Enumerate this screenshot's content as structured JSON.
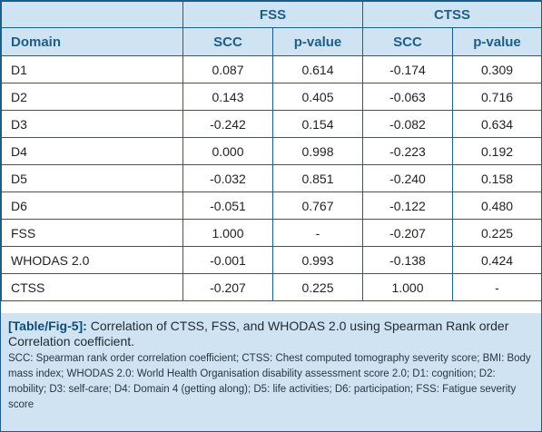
{
  "table": {
    "group_headers": [
      "FSS",
      "CTSS"
    ],
    "domain_header": "Domain",
    "sub_headers": [
      "SCC",
      "p-value",
      "SCC",
      "p-value"
    ],
    "rows": [
      {
        "name": "D1",
        "cells": [
          "0.087",
          "0.614",
          "-0.174",
          "0.309"
        ]
      },
      {
        "name": "D2",
        "cells": [
          "0.143",
          "0.405",
          "-0.063",
          "0.716"
        ]
      },
      {
        "name": "D3",
        "cells": [
          "-0.242",
          "0.154",
          "-0.082",
          "0.634"
        ]
      },
      {
        "name": "D4",
        "cells": [
          "0.000",
          "0.998",
          "-0.223",
          "0.192"
        ]
      },
      {
        "name": "D5",
        "cells": [
          "-0.032",
          "0.851",
          "-0.240",
          "0.158"
        ]
      },
      {
        "name": "D6",
        "cells": [
          "-0.051",
          "0.767",
          "-0.122",
          "0.480"
        ]
      },
      {
        "name": "FSS",
        "cells": [
          "1.000",
          "-",
          "-0.207",
          "0.225"
        ]
      },
      {
        "name": "WHODAS 2.0",
        "cells": [
          "-0.001",
          "0.993",
          "-0.138",
          "0.424"
        ]
      },
      {
        "name": "CTSS",
        "cells": [
          "-0.207",
          "0.225",
          "1.000",
          "-"
        ]
      }
    ]
  },
  "caption": {
    "label": "[Table/Fig-5]:",
    "title": " Correlation of CTSS, FSS, and WHODAS 2.0 using Spearman Rank order Correlation coefficient.",
    "note": "SCC: Spearman rank order correlation coefficient; CTSS: Chest computed tomography severity score; BMI: Body mass index; WHODAS 2.0: World Health Organisation disability assessment score 2.0; D1: cognition; D2: mobility; D3: self-care; D4: Domain 4 (getting along); D5: life activities; D6: participation; FSS: Fatigue severity score"
  },
  "colors": {
    "header_bg": "#cfe3f2",
    "border": "#1d5e86",
    "header_text": "#1d5e86"
  }
}
